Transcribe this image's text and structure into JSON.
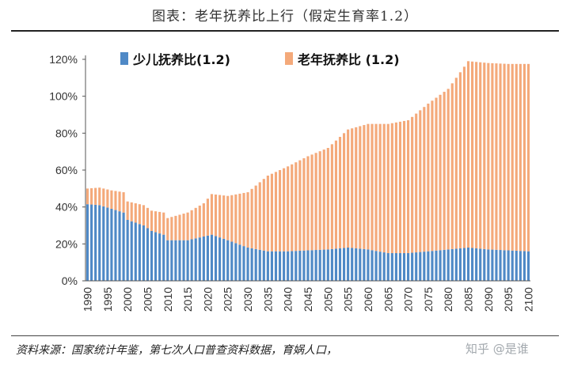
{
  "title": "图表：老年抚养比上行（假定生育率1.2）",
  "source": "资料来源：国家统计年鉴，第七次人口普查资料数据，育娲人口，",
  "watermark": "知乎 @是谁",
  "colors": {
    "youth": "#4f89c6",
    "elderly": "#f4a97a",
    "axis": "#555555"
  },
  "chart_data": {
    "type": "bar",
    "stacked": true,
    "title": "图表：老年抚养比上行（假定生育率1.2）",
    "xlabel": "",
    "ylabel": "",
    "ylim": [
      0,
      120
    ],
    "y_ticks": [
      "0%",
      "20%",
      "40%",
      "60%",
      "80%",
      "100%",
      "120%"
    ],
    "x_tick_labels": [
      "1990",
      "1995",
      "2000",
      "2005",
      "2010",
      "2015",
      "2020",
      "2025",
      "2030",
      "2035",
      "2040",
      "2045",
      "2050",
      "2055",
      "2060",
      "2065",
      "2070",
      "2075",
      "2080",
      "2085",
      "2090",
      "2095",
      "2100"
    ],
    "x_start": 1990,
    "x_end": 2100,
    "legend_position": "top",
    "series": [
      {
        "name": "少儿抚养比(1.2)",
        "anchors": [
          [
            1990,
            41.5
          ],
          [
            1993,
            41
          ],
          [
            1996,
            39
          ],
          [
            1999,
            37
          ],
          [
            2000,
            33
          ],
          [
            2004,
            30
          ],
          [
            2006,
            27
          ],
          [
            2009,
            25
          ],
          [
            2010,
            22
          ],
          [
            2015,
            22
          ],
          [
            2019,
            24
          ],
          [
            2021,
            25
          ],
          [
            2025,
            22
          ],
          [
            2030,
            18
          ],
          [
            2035,
            16
          ],
          [
            2040,
            16
          ],
          [
            2050,
            17
          ],
          [
            2055,
            18
          ],
          [
            2060,
            17
          ],
          [
            2065,
            15
          ],
          [
            2070,
            15
          ],
          [
            2075,
            16
          ],
          [
            2080,
            17
          ],
          [
            2085,
            18
          ],
          [
            2090,
            17
          ],
          [
            2095,
            16.5
          ],
          [
            2100,
            16
          ]
        ]
      },
      {
        "name": "老年抚养比 (1.2)",
        "anchors": [
          [
            1990,
            8.5
          ],
          [
            1993,
            9.5
          ],
          [
            1996,
            10
          ],
          [
            1999,
            11
          ],
          [
            2000,
            10
          ],
          [
            2004,
            11
          ],
          [
            2006,
            11
          ],
          [
            2009,
            12
          ],
          [
            2010,
            12
          ],
          [
            2015,
            15
          ],
          [
            2019,
            18
          ],
          [
            2021,
            22
          ],
          [
            2025,
            24
          ],
          [
            2030,
            30
          ],
          [
            2035,
            41
          ],
          [
            2040,
            46
          ],
          [
            2045,
            51
          ],
          [
            2050,
            55
          ],
          [
            2055,
            64
          ],
          [
            2060,
            68
          ],
          [
            2065,
            70
          ],
          [
            2070,
            72
          ],
          [
            2075,
            80
          ],
          [
            2080,
            87
          ],
          [
            2085,
            101
          ],
          [
            2090,
            101
          ],
          [
            2095,
            101
          ],
          [
            2100,
            101.5
          ]
        ]
      }
    ]
  }
}
